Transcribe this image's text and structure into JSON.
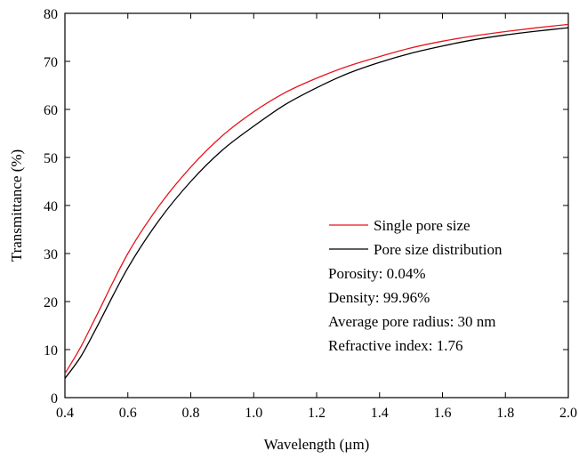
{
  "chart_data": {
    "type": "line",
    "title": "",
    "xlabel": "Wavelength (μm)",
    "ylabel": "Transmittance (%)",
    "xlim": [
      0.4,
      2.0
    ],
    "ylim": [
      0,
      80
    ],
    "x_ticks": [
      0.4,
      0.6,
      0.8,
      1.0,
      1.2,
      1.4,
      1.6,
      1.8,
      2.0
    ],
    "x_tick_labels": [
      "0.4",
      "0.6",
      "0.8",
      "1.0",
      "1.2",
      "1.4",
      "1.6",
      "1.8",
      "2.0"
    ],
    "y_ticks": [
      0,
      10,
      20,
      30,
      40,
      50,
      60,
      70,
      80
    ],
    "y_tick_labels": [
      "0",
      "10",
      "20",
      "30",
      "40",
      "50",
      "60",
      "70",
      "80"
    ],
    "grid": false,
    "legend_position": "center-right",
    "x": [
      0.4,
      0.45,
      0.5,
      0.6,
      0.7,
      0.8,
      0.9,
      1.0,
      1.1,
      1.2,
      1.3,
      1.4,
      1.5,
      1.6,
      1.7,
      1.8,
      1.9,
      2.0
    ],
    "series": [
      {
        "name": "Single pore size",
        "color": "#e8141c",
        "values": [
          5,
          10.5,
          17,
          30,
          40,
          48,
          54.5,
          59.5,
          63.5,
          66.5,
          69,
          71,
          72.8,
          74.2,
          75.3,
          76.2,
          77,
          77.7
        ]
      },
      {
        "name": "Pore size distribution",
        "color": "#000000",
        "values": [
          4,
          8.5,
          14.5,
          27,
          37,
          45,
          51.5,
          56.5,
          61,
          64.5,
          67.5,
          69.8,
          71.7,
          73.2,
          74.5,
          75.5,
          76.3,
          77
        ]
      }
    ],
    "annotations": [
      "Porosity: 0.04%",
      "Density: 99.96%",
      "Average pore radius: 30 nm",
      "Refractive index: 1.76"
    ]
  }
}
